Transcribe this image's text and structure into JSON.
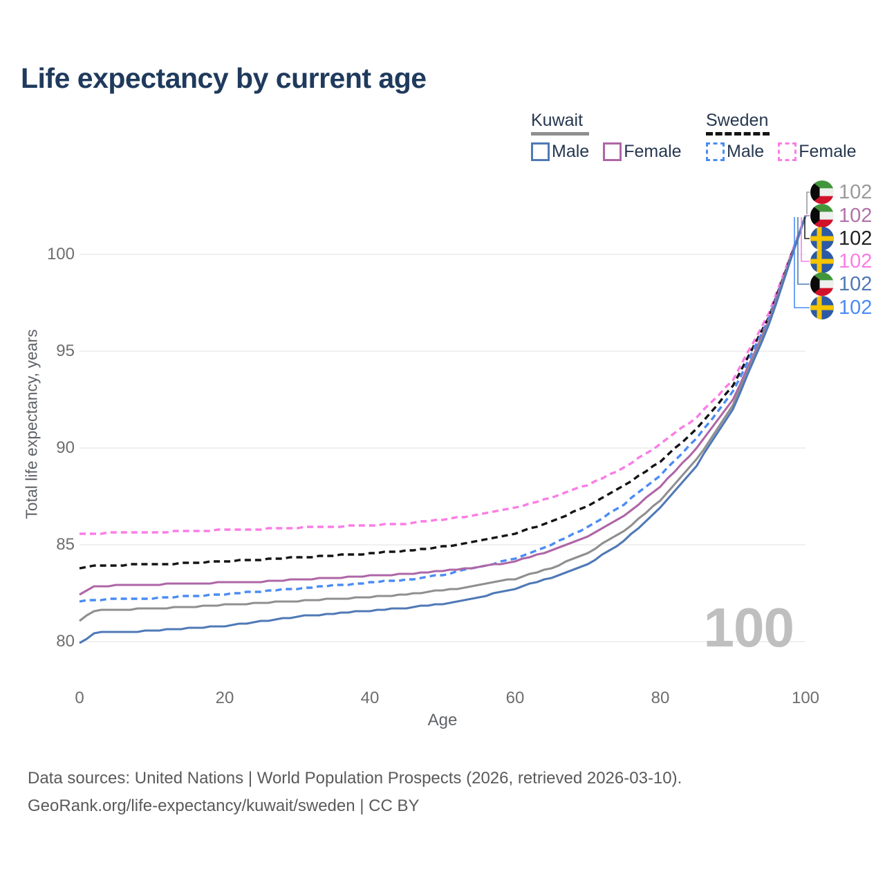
{
  "title": "Life expectancy by current age",
  "legend": {
    "groups": [
      {
        "country": "Kuwait",
        "style": "solid",
        "items": [
          {
            "label": "Male"
          },
          {
            "label": "Female"
          }
        ]
      },
      {
        "country": "Sweden",
        "style": "dashed",
        "items": [
          {
            "label": "Male"
          },
          {
            "label": "Female"
          }
        ]
      }
    ]
  },
  "chart_data": {
    "type": "line",
    "title": "Life expectancy by current age",
    "xlabel": "Age",
    "ylabel": "Total life expectancy, years",
    "xlim": [
      0,
      100
    ],
    "ylim": [
      78.5,
      103.5
    ],
    "xticks": [
      0,
      20,
      40,
      60,
      80,
      100
    ],
    "yticks": [
      80,
      85,
      90,
      95,
      100
    ],
    "grid": "horizontal-only",
    "legend_position": "top-right",
    "x": [
      0,
      2,
      5,
      10,
      15,
      20,
      25,
      30,
      35,
      40,
      45,
      50,
      55,
      60,
      65,
      70,
      75,
      80,
      85,
      90,
      95,
      100
    ],
    "series": [
      {
        "name": "Sweden Female",
        "country": "Sweden",
        "sex": "Female",
        "color": "#fb7ce5",
        "dash": true,
        "values": [
          85.55,
          85.6,
          85.62,
          85.65,
          85.7,
          85.78,
          85.82,
          85.88,
          85.95,
          86.0,
          86.1,
          86.3,
          86.55,
          86.9,
          87.45,
          88.1,
          89.0,
          90.2,
          91.6,
          93.5,
          97.0,
          102
        ]
      },
      {
        "name": "Sweden All",
        "country": "Sweden",
        "sex": "All",
        "color": "#141414",
        "dash": true,
        "values": [
          83.8,
          83.9,
          83.95,
          84.0,
          84.05,
          84.15,
          84.25,
          84.35,
          84.45,
          84.55,
          84.7,
          84.9,
          85.2,
          85.6,
          86.2,
          87.0,
          88.05,
          89.3,
          91.0,
          93.2,
          96.8,
          102
        ]
      },
      {
        "name": "Sweden Male",
        "country": "Sweden",
        "sex": "Male",
        "color": "#4a8cf3",
        "dash": true,
        "values": [
          82.1,
          82.15,
          82.2,
          82.25,
          82.35,
          82.45,
          82.6,
          82.75,
          82.9,
          83.05,
          83.2,
          83.45,
          83.85,
          84.3,
          85.0,
          85.9,
          87.1,
          88.6,
          90.5,
          92.9,
          96.7,
          102
        ]
      },
      {
        "name": "Kuwait Female",
        "country": "Kuwait",
        "sex": "Female",
        "color": "#ae66a6",
        "dash": false,
        "values": [
          82.4,
          82.85,
          82.9,
          82.95,
          83.0,
          83.05,
          83.1,
          83.2,
          83.3,
          83.4,
          83.5,
          83.65,
          83.85,
          84.15,
          84.7,
          85.4,
          86.5,
          88.0,
          90.0,
          92.5,
          96.6,
          102
        ]
      },
      {
        "name": "Kuwait All",
        "country": "Kuwait",
        "sex": "All",
        "color": "#8f8f8f",
        "dash": false,
        "values": [
          81.1,
          81.6,
          81.65,
          81.7,
          81.8,
          81.9,
          82.0,
          82.1,
          82.2,
          82.3,
          82.45,
          82.65,
          82.9,
          83.25,
          83.8,
          84.6,
          85.7,
          87.3,
          89.4,
          92.2,
          96.5,
          102
        ]
      },
      {
        "name": "Kuwait Male",
        "country": "Kuwait",
        "sex": "Male",
        "color": "#4f79b6",
        "dash": false,
        "values": [
          79.9,
          80.45,
          80.5,
          80.55,
          80.7,
          80.8,
          81.05,
          81.3,
          81.45,
          81.6,
          81.75,
          81.95,
          82.3,
          82.75,
          83.3,
          84.0,
          85.2,
          86.9,
          89.1,
          92.0,
          96.4,
          102
        ]
      }
    ],
    "end_labels": [
      {
        "flag": "kuwait",
        "series": "Kuwait All",
        "value": "102",
        "color": "#9a9a9a"
      },
      {
        "flag": "kuwait",
        "series": "Kuwait Female",
        "value": "102",
        "color": "#b173a9"
      },
      {
        "flag": "sweden",
        "series": "Sweden All",
        "value": "102",
        "color": "#222222"
      },
      {
        "flag": "sweden",
        "series": "Sweden Female",
        "value": "102",
        "color": "#fb7ce5"
      },
      {
        "flag": "kuwait",
        "series": "Kuwait Male",
        "value": "102",
        "color": "#4f79b6"
      },
      {
        "flag": "sweden",
        "series": "Sweden Male",
        "value": "102",
        "color": "#4a8cf3"
      }
    ],
    "hover_age_watermark": "100",
    "gridline_color": "#e7e7e7"
  },
  "footer": {
    "line1": "Data sources: United Nations | World Population Prospects (2026, retrieved 2026-03-10).",
    "line2": "GeoRank.org/life-expectancy/kuwait/sweden | CC BY"
  }
}
